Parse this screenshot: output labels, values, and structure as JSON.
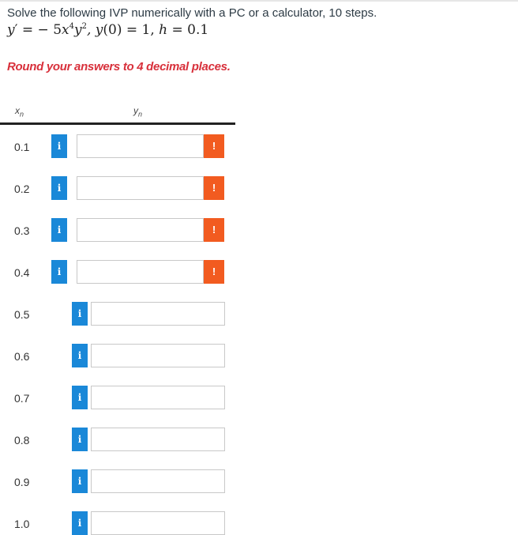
{
  "question": {
    "text": "Solve the following IVP numerically with a PC or a calculator, 10 steps.",
    "round_instruction": "Round your answers to 4 decimal places."
  },
  "table": {
    "col_x_label": "x",
    "col_x_sub": "n",
    "col_y_label": "y",
    "col_y_sub": "n",
    "rows": [
      {
        "x": "0.1",
        "value": "",
        "warning": "!"
      },
      {
        "x": "0.2",
        "value": "",
        "warning": "!"
      },
      {
        "x": "0.3",
        "value": "",
        "warning": "!"
      },
      {
        "x": "0.4",
        "value": "",
        "warning": "!"
      },
      {
        "x": "0.5",
        "value": ""
      },
      {
        "x": "0.6",
        "value": ""
      },
      {
        "x": "0.7",
        "value": ""
      },
      {
        "x": "0.8",
        "value": ""
      },
      {
        "x": "0.9",
        "value": ""
      },
      {
        "x": "1.0",
        "value": ""
      }
    ],
    "info_label": "i"
  },
  "colors": {
    "info": "#1a88d8",
    "warning": "#f25b20",
    "round_text": "#d8303b"
  }
}
